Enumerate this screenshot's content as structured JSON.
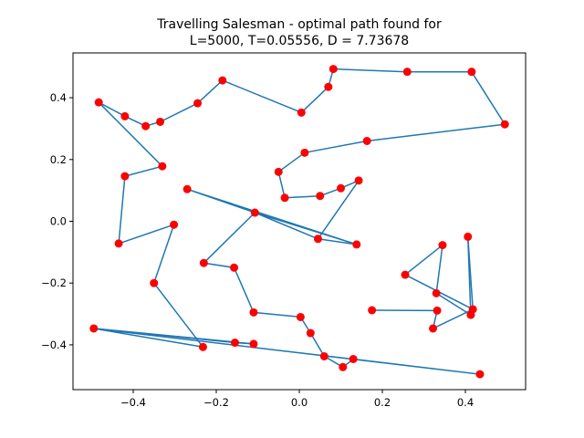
{
  "chart_data": {
    "type": "scatter",
    "title_lines": [
      "Travelling Salesman - optimal path found for",
      "L=5000, T=0.05556, D = 7.73678"
    ],
    "xlabel": "",
    "ylabel": "",
    "xlim": [
      -0.545,
      0.545
    ],
    "ylim": [
      -0.545,
      0.545
    ],
    "xticks": [
      -0.4,
      -0.2,
      0.0,
      0.2,
      0.4
    ],
    "xtick_labels": [
      "−0.4",
      "−0.2",
      "0.0",
      "0.2",
      "0.4"
    ],
    "yticks": [
      -0.4,
      -0.2,
      0.0,
      0.2,
      0.4
    ],
    "ytick_labels": [
      "−0.4",
      "−0.2",
      "0.0",
      "0.2",
      "0.4"
    ],
    "grid": false,
    "line_color": "#1f77b4",
    "point_color": "#ff0000",
    "path": [
      [
        -0.483,
        0.385
      ],
      [
        -0.42,
        0.34
      ],
      [
        -0.37,
        0.308
      ],
      [
        -0.335,
        0.322
      ],
      [
        -0.245,
        0.382
      ],
      [
        -0.185,
        0.456
      ],
      [
        0.005,
        0.352
      ],
      [
        0.07,
        0.435
      ],
      [
        0.082,
        0.493
      ],
      [
        0.26,
        0.484
      ],
      [
        0.415,
        0.484
      ],
      [
        0.495,
        0.314
      ],
      [
        0.163,
        0.26
      ],
      [
        0.013,
        0.222
      ],
      [
        -0.05,
        0.16
      ],
      [
        -0.035,
        0.076
      ],
      [
        0.05,
        0.082
      ],
      [
        0.1,
        0.107
      ],
      [
        0.143,
        0.132
      ],
      [
        0.045,
        -0.057
      ],
      [
        0.138,
        -0.075
      ],
      [
        -0.107,
        0.028
      ],
      [
        -0.27,
        0.104
      ],
      [
        0.138,
        -0.075
      ],
      [
        0.045,
        -0.057
      ],
      [
        -0.107,
        0.028
      ],
      [
        -0.23,
        -0.135
      ],
      [
        -0.157,
        -0.15
      ],
      [
        -0.11,
        -0.295
      ],
      [
        0.003,
        -0.31
      ],
      [
        0.027,
        -0.362
      ],
      [
        0.06,
        -0.437
      ],
      [
        0.105,
        -0.472
      ],
      [
        0.13,
        -0.446
      ],
      [
        0.435,
        -0.495
      ],
      [
        -0.495,
        -0.347
      ],
      [
        -0.232,
        -0.407
      ],
      [
        -0.35,
        -0.2
      ],
      [
        -0.302,
        -0.011
      ],
      [
        -0.435,
        -0.072
      ],
      [
        -0.42,
        0.146
      ],
      [
        -0.33,
        0.178
      ],
      [
        -0.483,
        0.385
      ]
    ],
    "extra_segments": [
      [
        [
          -0.495,
          -0.347
        ],
        [
          -0.155,
          -0.393
        ]
      ],
      [
        [
          -0.155,
          -0.393
        ],
        [
          -0.11,
          -0.397
        ]
      ],
      [
        [
          -0.11,
          -0.397
        ],
        [
          -0.495,
          -0.347
        ]
      ],
      [
        [
          0.175,
          -0.288
        ],
        [
          0.332,
          -0.289
        ]
      ],
      [
        [
          0.332,
          -0.289
        ],
        [
          0.322,
          -0.347
        ]
      ],
      [
        [
          0.322,
          -0.347
        ],
        [
          0.418,
          -0.285
        ]
      ],
      [
        [
          0.418,
          -0.285
        ],
        [
          0.406,
          -0.05
        ]
      ],
      [
        [
          0.406,
          -0.05
        ],
        [
          0.413,
          -0.303
        ]
      ],
      [
        [
          0.413,
          -0.303
        ],
        [
          0.33,
          -0.233
        ]
      ],
      [
        [
          0.33,
          -0.233
        ],
        [
          0.345,
          -0.077
        ]
      ],
      [
        [
          0.345,
          -0.077
        ],
        [
          0.255,
          -0.173
        ]
      ],
      [
        [
          0.255,
          -0.173
        ],
        [
          0.418,
          -0.285
        ]
      ]
    ],
    "points": [
      [
        -0.483,
        0.385
      ],
      [
        -0.42,
        0.34
      ],
      [
        -0.37,
        0.308
      ],
      [
        -0.335,
        0.322
      ],
      [
        -0.245,
        0.382
      ],
      [
        -0.185,
        0.456
      ],
      [
        0.005,
        0.352
      ],
      [
        0.07,
        0.435
      ],
      [
        0.082,
        0.493
      ],
      [
        0.26,
        0.484
      ],
      [
        0.415,
        0.484
      ],
      [
        0.495,
        0.314
      ],
      [
        0.163,
        0.26
      ],
      [
        0.013,
        0.222
      ],
      [
        -0.05,
        0.16
      ],
      [
        -0.035,
        0.076
      ],
      [
        0.05,
        0.082
      ],
      [
        0.1,
        0.107
      ],
      [
        0.143,
        0.132
      ],
      [
        0.045,
        -0.057
      ],
      [
        0.138,
        -0.075
      ],
      [
        -0.107,
        0.028
      ],
      [
        -0.27,
        0.104
      ],
      [
        -0.23,
        -0.135
      ],
      [
        -0.157,
        -0.15
      ],
      [
        -0.11,
        -0.295
      ],
      [
        0.003,
        -0.31
      ],
      [
        0.027,
        -0.362
      ],
      [
        0.06,
        -0.437
      ],
      [
        0.105,
        -0.472
      ],
      [
        0.13,
        -0.446
      ],
      [
        0.435,
        -0.495
      ],
      [
        -0.495,
        -0.347
      ],
      [
        -0.232,
        -0.407
      ],
      [
        -0.35,
        -0.2
      ],
      [
        -0.302,
        -0.011
      ],
      [
        -0.435,
        -0.072
      ],
      [
        -0.42,
        0.146
      ],
      [
        -0.33,
        0.178
      ],
      [
        -0.155,
        -0.393
      ],
      [
        -0.11,
        -0.397
      ],
      [
        0.175,
        -0.288
      ],
      [
        0.332,
        -0.289
      ],
      [
        0.322,
        -0.347
      ],
      [
        0.418,
        -0.285
      ],
      [
        0.413,
        -0.303
      ],
      [
        0.406,
        -0.05
      ],
      [
        0.345,
        -0.077
      ],
      [
        0.33,
        -0.233
      ],
      [
        0.255,
        -0.173
      ]
    ]
  }
}
